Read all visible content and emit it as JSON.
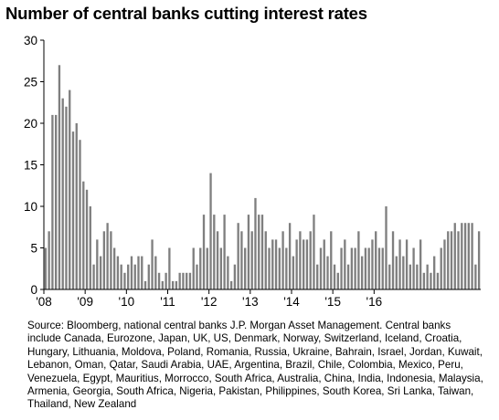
{
  "title": "Number of central banks cutting interest rates",
  "note": "Source: Bloomberg, national central banks J.P. Morgan Asset Management. Central banks include Canada, Eurozone, Japan, UK, US, Denmark, Norway, Switzerland, Iceland, Croatia, Hungary, Lithuania, Moldova, Poland, Romania, Russia, Ukraine, Bahrain, Israel, Jordan, Kuwait, Lebanon, Oman, Qatar, Saudi Arabia, UAE, Argentina, Brazil, Chile, Colombia, Mexico, Peru, Venezuela, Egypt, Mauritius, Morrocco, South Africa, Australia, China, India, Indonesia, Malaysia, Armenia, Georgia, South Africa, Nigeria, Pakistan, Philippines, South Korea, Sri Lanka, Taiwan, Thailand, New Zealand",
  "colors": {
    "bar": "#7f7f7f",
    "axis": "#000000"
  },
  "chart_data": {
    "type": "bar",
    "title": "Number of central banks cutting interest rates",
    "xlabel": "",
    "ylabel": "",
    "ylim": [
      0,
      30
    ],
    "yticks": [
      0,
      5,
      10,
      15,
      20,
      25,
      30
    ],
    "xticks": [
      "'08",
      "'09",
      "'10",
      "'11",
      "'12",
      "'13",
      "'14",
      "'15",
      "'16"
    ],
    "grid": false,
    "start": "2008-01",
    "values": [
      5,
      7,
      21,
      21,
      27,
      23,
      22,
      24,
      19,
      20,
      18,
      13,
      12,
      10,
      3,
      6,
      4,
      7,
      8,
      7,
      5,
      4,
      3,
      2,
      3,
      4,
      3,
      4,
      4,
      1,
      3,
      6,
      4,
      2,
      1,
      2,
      5,
      1,
      1,
      2,
      2,
      2,
      2,
      5,
      3,
      5,
      9,
      5,
      14,
      9,
      7,
      5,
      9,
      4,
      1,
      3,
      8,
      7,
      5,
      9,
      7,
      11,
      9,
      9,
      7,
      5,
      6,
      6,
      5,
      7,
      5,
      8,
      4,
      6,
      7,
      6,
      6,
      7,
      9,
      3,
      5,
      6,
      4,
      7,
      3,
      2,
      5,
      6,
      3,
      5,
      5,
      7,
      4,
      5,
      5,
      6,
      7,
      5,
      5,
      10,
      3,
      7,
      4,
      6,
      4,
      6,
      3,
      5,
      3,
      6,
      2,
      3,
      2,
      4,
      2,
      5,
      6,
      7,
      7,
      8,
      7,
      8,
      8,
      8,
      8,
      3,
      7
    ]
  }
}
